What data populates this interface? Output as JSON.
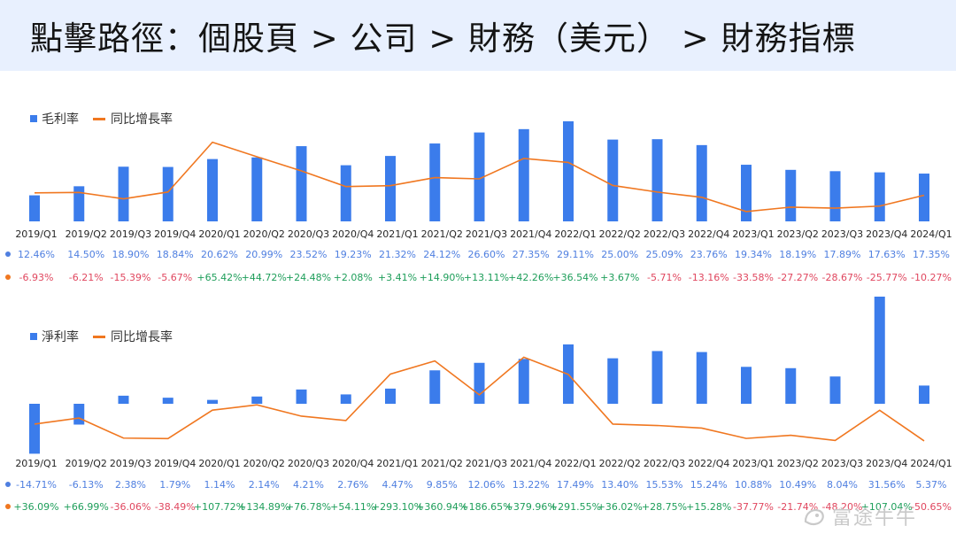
{
  "header": {
    "title": "點擊路徑：個股頁 > 公司 > 財務（美元） > 財務指標"
  },
  "colors": {
    "bar": "#3b7ceb",
    "line": "#f07720",
    "positive": "#1e9e5a",
    "negative": "#e0475f",
    "value_text": "#4f7fe0",
    "axis_label": "#262626"
  },
  "watermark": {
    "text": "富途牛牛",
    "icon": "futu-bull-icon"
  },
  "chart_data": [
    {
      "type": "bar+line",
      "legend": {
        "bar_label": "毛利率",
        "line_label": "同比增長率"
      },
      "categories": [
        "2019/Q1",
        "2019/Q2",
        "2019/Q3",
        "2019/Q4",
        "2020/Q1",
        "2020/Q2",
        "2020/Q3",
        "2020/Q4",
        "2021/Q1",
        "2021/Q2",
        "2021/Q3",
        "2021/Q4",
        "2022/Q1",
        "2022/Q2",
        "2022/Q3",
        "2022/Q4",
        "2023/Q1",
        "2023/Q2",
        "2023/Q3",
        "2023/Q4",
        "2024/Q1"
      ],
      "bar_values": [
        12.46,
        14.5,
        18.9,
        18.84,
        20.62,
        20.99,
        23.52,
        19.23,
        21.32,
        24.12,
        26.6,
        27.35,
        29.11,
        25.0,
        25.09,
        23.76,
        19.34,
        18.19,
        17.89,
        17.63,
        17.35
      ],
      "bar_labels": [
        "12.46%",
        "14.50%",
        "18.90%",
        "18.84%",
        "20.62%",
        "20.99%",
        "23.52%",
        "19.23%",
        "21.32%",
        "24.12%",
        "26.60%",
        "27.35%",
        "29.11%",
        "25.00%",
        "25.09%",
        "23.76%",
        "19.34%",
        "18.19%",
        "17.89%",
        "17.63%",
        "17.35%"
      ],
      "line_values": [
        -6.93,
        -6.21,
        -15.39,
        -5.67,
        65.42,
        44.72,
        24.48,
        2.08,
        3.41,
        14.9,
        13.11,
        42.26,
        36.54,
        3.67,
        -5.71,
        -13.16,
        -33.58,
        -27.27,
        -28.67,
        -25.77,
        -10.27
      ],
      "line_labels": [
        "-6.93%",
        "-6.21%",
        "-15.39%",
        "-5.67%",
        "+65.42%",
        "+44.72%",
        "+24.48%",
        "+2.08%",
        "+3.41%",
        "+14.90%",
        "+13.11%",
        "+42.26%",
        "+36.54%",
        "+3.67%",
        "-5.71%",
        "-13.16%",
        "-33.58%",
        "-27.27%",
        "-28.67%",
        "-25.77%",
        "-10.27%"
      ],
      "bar_range": [
        0,
        30
      ],
      "line_range": [
        -40,
        70
      ]
    },
    {
      "type": "bar+line",
      "legend": {
        "bar_label": "淨利率",
        "line_label": "同比增長率"
      },
      "categories": [
        "2019/Q1",
        "2019/Q2",
        "2019/Q3",
        "2019/Q4",
        "2020/Q1",
        "2020/Q2",
        "2020/Q3",
        "2020/Q4",
        "2021/Q1",
        "2021/Q2",
        "2021/Q3",
        "2021/Q4",
        "2022/Q1",
        "2022/Q2",
        "2022/Q3",
        "2022/Q4",
        "2023/Q1",
        "2023/Q2",
        "2023/Q3",
        "2023/Q4",
        "2024/Q1"
      ],
      "bar_values": [
        -14.71,
        -6.13,
        2.38,
        1.79,
        1.14,
        2.14,
        4.21,
        2.76,
        4.47,
        9.85,
        12.06,
        13.22,
        17.49,
        13.4,
        15.53,
        15.24,
        10.88,
        10.49,
        8.04,
        31.56,
        5.37
      ],
      "bar_labels": [
        "-14.71%",
        "-6.13%",
        "2.38%",
        "1.79%",
        "1.14%",
        "2.14%",
        "4.21%",
        "2.76%",
        "4.47%",
        "9.85%",
        "12.06%",
        "13.22%",
        "17.49%",
        "13.40%",
        "15.53%",
        "15.24%",
        "10.88%",
        "10.49%",
        "8.04%",
        "31.56%",
        "5.37%"
      ],
      "line_values": [
        36.09,
        66.99,
        -36.06,
        -38.49,
        107.72,
        134.89,
        76.78,
        54.11,
        293.1,
        360.94,
        186.65,
        379.96,
        291.55,
        36.02,
        28.75,
        15.28,
        -37.77,
        -21.74,
        -48.2,
        107.04,
        -50.65
      ],
      "line_labels": [
        "+36.09%",
        "+66.99%",
        "-36.06%",
        "-38.49%",
        "+107.72%",
        "+134.89%",
        "+76.78%",
        "+54.11%",
        "+293.10%",
        "+360.94%",
        "+186.65%",
        "+379.96%",
        "+291.55%",
        "+36.02%",
        "+28.75%",
        "+15.28%",
        "-37.77%",
        "-21.74%",
        "-48.20%",
        "+107.04%",
        "-50.65%"
      ],
      "bar_range": [
        -15,
        32
      ],
      "line_range": [
        -60,
        400
      ]
    }
  ]
}
